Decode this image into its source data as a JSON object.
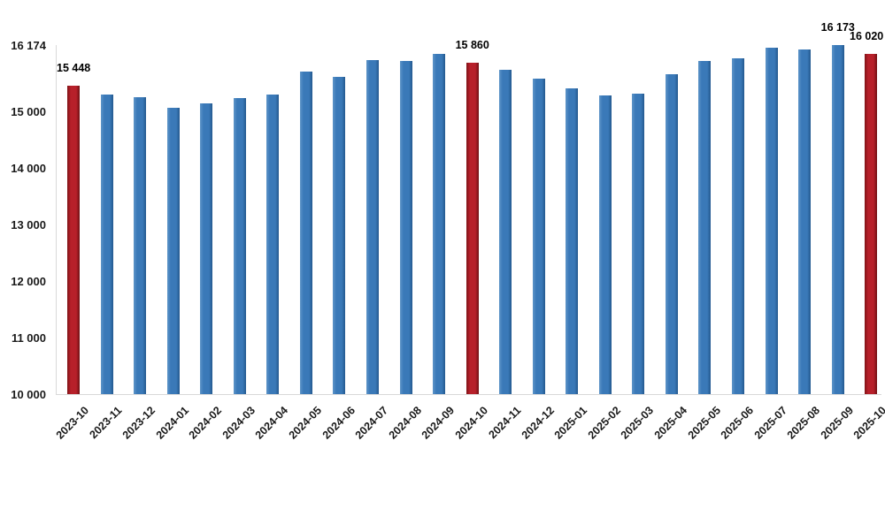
{
  "chart_data": {
    "type": "bar",
    "title": "",
    "xlabel": "",
    "ylabel": "",
    "categories": [
      "2023-10",
      "2023-11",
      "2023-12",
      "2024-01",
      "2024-02",
      "2024-03",
      "2024-04",
      "2024-05",
      "2024-06",
      "2024-07",
      "2024-08",
      "2024-09",
      "2024-10",
      "2024-11",
      "2024-12",
      "2025-01",
      "2025-02",
      "2025-03",
      "2025-04",
      "2025-05",
      "2025-06",
      "2025-07",
      "2025-08",
      "2025-09",
      "2025-10"
    ],
    "values": [
      15448,
      15295,
      15245,
      15070,
      15135,
      15230,
      15295,
      15700,
      15610,
      15915,
      15900,
      16010,
      15860,
      15740,
      15585,
      15410,
      15285,
      15320,
      15665,
      15890,
      15935,
      16120,
      16090,
      16173,
      16020
    ],
    "highlighted_categories": [
      "2023-10",
      "2024-10",
      "2025-10"
    ],
    "data_labels": [
      {
        "index": 0,
        "text": "15 448"
      },
      {
        "index": 12,
        "text": "15 860"
      },
      {
        "index": 23,
        "text": "16 173"
      },
      {
        "index": 24,
        "text": "16 020"
      }
    ],
    "y_ticks": [
      {
        "value": 16174,
        "label": "16 174"
      },
      {
        "value": 15000,
        "label": "15 000"
      },
      {
        "value": 14000,
        "label": "14 000"
      },
      {
        "value": 13000,
        "label": "13 000"
      },
      {
        "value": 12000,
        "label": "12 000"
      },
      {
        "value": 11000,
        "label": "11 000"
      },
      {
        "value": 10000,
        "label": "10 000"
      }
    ],
    "ylim": [
      10000,
      16174
    ],
    "grid": false,
    "legend": null,
    "colors": {
      "bar_default": "#3a79b8",
      "bar_highlight": "#b7202a",
      "axis_line": "#d9d9d9",
      "label_text": "#1a1a1a"
    }
  }
}
